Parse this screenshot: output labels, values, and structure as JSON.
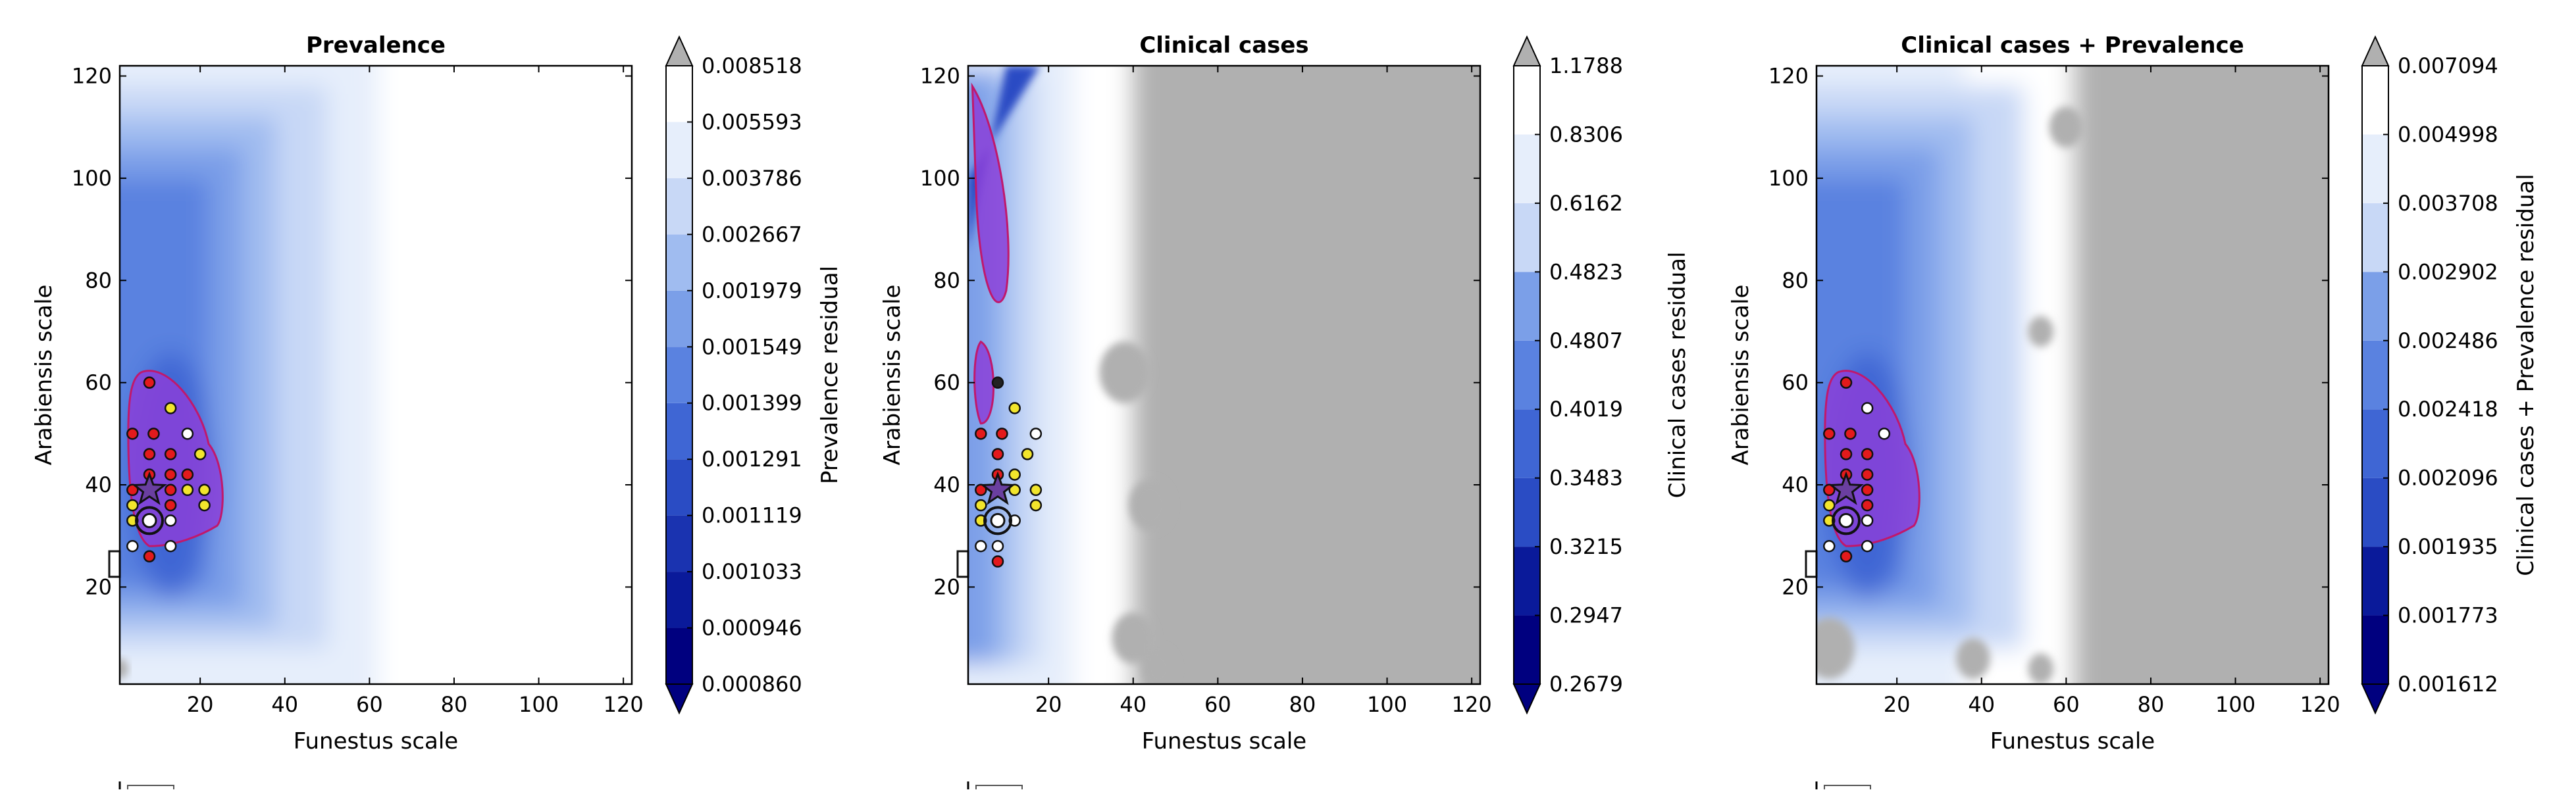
{
  "chart_data": [
    {
      "type": "contour",
      "title": "Prevalence",
      "xlabel": "Funestus scale",
      "ylabel": "Arabiensis scale",
      "xlim": [
        1,
        122
      ],
      "ylim": [
        1,
        122
      ],
      "xticks": [
        20,
        40,
        60,
        80,
        100,
        120
      ],
      "yticks": [
        20,
        40,
        60,
        80,
        100,
        120
      ],
      "colorbar": {
        "label": "Prevalence residual",
        "levels": [
          "0.000860",
          "0.000946",
          "0.001033",
          "0.001119",
          "0.001291",
          "0.001399",
          "0.001549",
          "0.001979",
          "0.002667",
          "0.003786",
          "0.005593",
          "0.008518"
        ],
        "extend_min_color": "#00007f",
        "extend_max_color": "#b0b0b0"
      },
      "best_point": {
        "x": 8,
        "y": 39
      },
      "ring_point": {
        "x": 8,
        "y": 33
      },
      "points": [
        {
          "x": 8,
          "y": 60,
          "color": "red"
        },
        {
          "x": 13,
          "y": 55,
          "color": "yellow"
        },
        {
          "x": 4,
          "y": 50,
          "color": "red"
        },
        {
          "x": 9,
          "y": 50,
          "color": "red"
        },
        {
          "x": 17,
          "y": 50,
          "color": "white"
        },
        {
          "x": 8,
          "y": 46,
          "color": "red"
        },
        {
          "x": 13,
          "y": 46,
          "color": "red"
        },
        {
          "x": 20,
          "y": 46,
          "color": "yellow"
        },
        {
          "x": 8,
          "y": 42,
          "color": "red"
        },
        {
          "x": 13,
          "y": 42,
          "color": "red"
        },
        {
          "x": 17,
          "y": 42,
          "color": "red"
        },
        {
          "x": 4,
          "y": 39,
          "color": "red"
        },
        {
          "x": 13,
          "y": 39,
          "color": "red"
        },
        {
          "x": 17,
          "y": 39,
          "color": "yellow"
        },
        {
          "x": 21,
          "y": 39,
          "color": "yellow"
        },
        {
          "x": 4,
          "y": 36,
          "color": "yellow"
        },
        {
          "x": 13,
          "y": 36,
          "color": "red"
        },
        {
          "x": 21,
          "y": 36,
          "color": "yellow"
        },
        {
          "x": 4,
          "y": 33,
          "color": "yellow"
        },
        {
          "x": 13,
          "y": 33,
          "color": "white"
        },
        {
          "x": 4,
          "y": 28,
          "color": "white"
        },
        {
          "x": 13,
          "y": 28,
          "color": "white"
        },
        {
          "x": 8,
          "y": 26,
          "color": "red"
        }
      ]
    },
    {
      "type": "contour",
      "title": "Clinical cases",
      "xlabel": "Funestus scale",
      "ylabel": "Arabiensis scale",
      "xlim": [
        1,
        122
      ],
      "ylim": [
        1,
        122
      ],
      "xticks": [
        20,
        40,
        60,
        80,
        100,
        120
      ],
      "yticks": [
        20,
        40,
        60,
        80,
        100,
        120
      ],
      "colorbar": {
        "label": "Clinical cases residual",
        "levels": [
          "0.2679",
          "0.2947",
          "0.3215",
          "0.3483",
          "0.4019",
          "0.4807",
          "0.4823",
          "0.6162",
          "0.8306",
          "1.1788"
        ],
        "extend_min_color": "#00007f",
        "extend_max_color": "#b0b0b0"
      },
      "best_point": {
        "x": 8,
        "y": 39
      },
      "ring_point": {
        "x": 8,
        "y": 33
      },
      "points": [
        {
          "x": 8,
          "y": 60,
          "color": "black"
        },
        {
          "x": 12,
          "y": 55,
          "color": "yellow"
        },
        {
          "x": 4,
          "y": 50,
          "color": "red"
        },
        {
          "x": 9,
          "y": 50,
          "color": "red"
        },
        {
          "x": 17,
          "y": 50,
          "color": "white"
        },
        {
          "x": 8,
          "y": 46,
          "color": "red"
        },
        {
          "x": 15,
          "y": 46,
          "color": "yellow"
        },
        {
          "x": 8,
          "y": 42,
          "color": "red"
        },
        {
          "x": 12,
          "y": 42,
          "color": "yellow"
        },
        {
          "x": 4,
          "y": 39,
          "color": "red"
        },
        {
          "x": 12,
          "y": 39,
          "color": "yellow"
        },
        {
          "x": 17,
          "y": 39,
          "color": "yellow"
        },
        {
          "x": 4,
          "y": 36,
          "color": "yellow"
        },
        {
          "x": 17,
          "y": 36,
          "color": "yellow"
        },
        {
          "x": 4,
          "y": 33,
          "color": "yellow"
        },
        {
          "x": 12,
          "y": 33,
          "color": "white"
        },
        {
          "x": 4,
          "y": 28,
          "color": "white"
        },
        {
          "x": 8,
          "y": 28,
          "color": "white"
        },
        {
          "x": 8,
          "y": 25,
          "color": "red"
        }
      ]
    },
    {
      "type": "contour",
      "title": "Clinical cases + Prevalence",
      "xlabel": "Funestus scale",
      "ylabel": "Arabiensis scale",
      "xlim": [
        1,
        122
      ],
      "ylim": [
        1,
        122
      ],
      "xticks": [
        20,
        40,
        60,
        80,
        100,
        120
      ],
      "yticks": [
        20,
        40,
        60,
        80,
        100,
        120
      ],
      "colorbar": {
        "label": "Clinical cases + Prevalence residual",
        "levels": [
          "0.001612",
          "0.001773",
          "0.001935",
          "0.002096",
          "0.002418",
          "0.002486",
          "0.002902",
          "0.003708",
          "0.004998",
          "0.007094"
        ],
        "extend_min_color": "#00007f",
        "extend_max_color": "#b0b0b0"
      },
      "best_point": {
        "x": 8,
        "y": 39
      },
      "ring_point": {
        "x": 8,
        "y": 33
      },
      "points": [
        {
          "x": 8,
          "y": 60,
          "color": "red"
        },
        {
          "x": 13,
          "y": 55,
          "color": "white"
        },
        {
          "x": 4,
          "y": 50,
          "color": "red"
        },
        {
          "x": 9,
          "y": 50,
          "color": "red"
        },
        {
          "x": 17,
          "y": 50,
          "color": "white"
        },
        {
          "x": 8,
          "y": 46,
          "color": "red"
        },
        {
          "x": 13,
          "y": 46,
          "color": "red"
        },
        {
          "x": 8,
          "y": 42,
          "color": "red"
        },
        {
          "x": 13,
          "y": 42,
          "color": "red"
        },
        {
          "x": 4,
          "y": 39,
          "color": "red"
        },
        {
          "x": 13,
          "y": 39,
          "color": "red"
        },
        {
          "x": 4,
          "y": 36,
          "color": "yellow"
        },
        {
          "x": 13,
          "y": 36,
          "color": "red"
        },
        {
          "x": 4,
          "y": 33,
          "color": "yellow"
        },
        {
          "x": 13,
          "y": 33,
          "color": "white"
        },
        {
          "x": 4,
          "y": 28,
          "color": "white"
        },
        {
          "x": 13,
          "y": 28,
          "color": "white"
        },
        {
          "x": 8,
          "y": 26,
          "color": "red"
        }
      ]
    }
  ],
  "colors": {
    "grey": "#b0b0b0",
    "purple": "#8a3fd8",
    "purple_edge": "#c0186c",
    "ramp": [
      "#00007f",
      "#0a1a9a",
      "#1a33b0",
      "#2a4cc4",
      "#3f66d4",
      "#5a82e0",
      "#7b9fe8",
      "#a0bcf0",
      "#c8d8f6",
      "#e6eefb",
      "#ffffff"
    ]
  }
}
